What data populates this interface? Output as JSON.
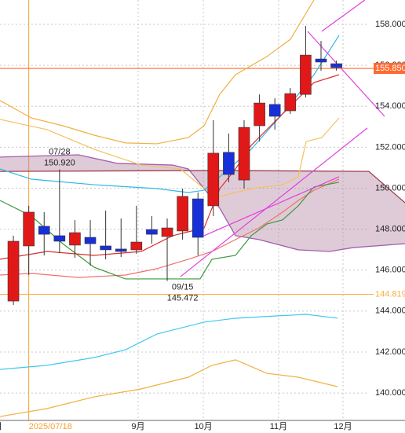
{
  "chart_data": {
    "type": "candlestick",
    "xlim": [
      -0.87,
      25.46
    ],
    "ylim": [
      138.66,
      159.19
    ],
    "yticks": [
      {
        "value": 158,
        "label": "158.000"
      },
      {
        "value": 156,
        "label": "156.000"
      },
      {
        "value": 154,
        "label": "154.000"
      },
      {
        "value": 152,
        "label": "152.000"
      },
      {
        "value": 150,
        "label": "150.000"
      },
      {
        "value": 148,
        "label": "148.000"
      },
      {
        "value": 146,
        "label": "146.000"
      },
      {
        "value": 144,
        "label": "144.000"
      },
      {
        "value": 142,
        "label": "142.000"
      },
      {
        "value": 140,
        "label": "140.000"
      }
    ],
    "xticks": [
      {
        "value": -1,
        "label": "月"
      },
      {
        "value": 1,
        "label": "2025/07/18"
      },
      {
        "value": 8.11,
        "label": "9月"
      },
      {
        "value": 12.35,
        "label": "10月"
      },
      {
        "value": 17.24,
        "label": "11月"
      },
      {
        "value": 21.43,
        "label": "12月"
      }
    ],
    "highlight_xtick": 1,
    "highlight_color": "#f5a030",
    "grid": true,
    "up_color": "#e01818",
    "down_color": "#1830d8",
    "open": [
      144.49,
      147.18,
      148.14,
      147.68,
      147.22,
      147.6,
      147.18,
      147.03,
      146.99,
      147.98,
      147.64,
      147.91,
      149.48,
      149.14,
      151.75,
      150.4,
      153.05,
      154.09,
      153.78,
      154.58,
      156.31,
      156.08
    ],
    "high": [
      147.68,
      149.14,
      148.83,
      150.92,
      148.44,
      148.44,
      148.91,
      148.52,
      149.14,
      148.64,
      148.52,
      149.98,
      149.79,
      153.32,
      152.67,
      153.32,
      154.58,
      154.39,
      154.89,
      157.92,
      157.19,
      156.23
    ],
    "low": [
      144.3,
      145.76,
      146.72,
      146.83,
      146.6,
      146.22,
      146.53,
      146.64,
      146.8,
      147.29,
      145.47,
      147.49,
      146.72,
      148.64,
      150.29,
      149.98,
      152.28,
      152.86,
      153.63,
      154.43,
      155.74,
      155.74
    ],
    "close": [
      147.41,
      148.83,
      147.75,
      147.41,
      147.83,
      147.29,
      146.99,
      146.91,
      147.37,
      147.75,
      148.06,
      149.6,
      147.6,
      151.71,
      150.67,
      152.97,
      154.16,
      153.51,
      154.62,
      156.5,
      156.16,
      155.89
    ],
    "cloud": {
      "fill": "#b07c9a",
      "span_a": {
        "color": "#a060b0",
        "x": [
          -0.87,
          4.23,
          6.78,
          10.35,
          11.37,
          13.42,
          14.44,
          15.97,
          18.52,
          20.56,
          22.09,
          25.46
        ],
        "values": [
          151.52,
          151.63,
          151.21,
          151.13,
          150.94,
          149.02,
          147.68,
          147.49,
          146.99,
          146.91,
          147.1,
          147.29
        ]
      },
      "span_b": {
        "color": "#a04050",
        "x": [
          -0.87,
          11.37,
          14.44,
          23.11,
          25.46
        ],
        "values": [
          150.82,
          150.86,
          150.86,
          150.82,
          149.29
        ]
      }
    },
    "lines": [
      {
        "color": "#f0b040",
        "x": [
          -0.87,
          1.17,
          3.21,
          5.25,
          7.29,
          9.33,
          11.37,
          12.4,
          13.42,
          14.44,
          16.48,
          18.01,
          19.54
        ],
        "values": [
          154.28,
          153.43,
          153.05,
          152.59,
          152.21,
          152.17,
          152.47,
          153.05,
          154.59,
          155.54,
          156.43,
          157.27,
          159.19
        ]
      },
      {
        "color": "#f5c060",
        "x": [
          -0.87,
          2.19,
          5.25,
          8.31,
          10.86,
          12.4,
          13.42,
          15.46,
          17.5,
          18.52,
          19.03,
          20.05,
          21.17
        ],
        "values": [
          153.36,
          152.86,
          151.9,
          151.13,
          150.94,
          149.98,
          149.6,
          149.98,
          150.17,
          150.56,
          152.28,
          152.47,
          153.43
        ]
      },
      {
        "color": "#40c8f0",
        "x": [
          -0.87,
          2.19,
          5.25,
          7.29,
          9.33,
          12.4,
          14.44,
          16.99,
          19.03,
          21.07
        ],
        "values": [
          141.15,
          141.35,
          141.73,
          142.11,
          142.88,
          143.46,
          143.65,
          143.76,
          143.84,
          143.65
        ]
      },
      {
        "color": "#f0b040",
        "x": [
          -0.87,
          2.19,
          5.25,
          8.31,
          11.37,
          12.91,
          14.44,
          16.48,
          18.52,
          21.07
        ],
        "values": [
          138.85,
          139.24,
          139.81,
          140.2,
          140.77,
          141.35,
          141.62,
          140.96,
          140.77,
          140.31
        ]
      },
      {
        "color": "#30b8e8",
        "x": [
          -0.87,
          1.17,
          5.25,
          9.33,
          11.37,
          12.4,
          13.42,
          15.46,
          17.5,
          19.54,
          21.17
        ],
        "values": [
          150.94,
          150.44,
          150.17,
          149.98,
          149.79,
          149.9,
          150.56,
          151.9,
          153.63,
          155.54,
          157.46
        ]
      },
      {
        "color": "#f07070",
        "x": [
          -0.87,
          1.17,
          4.23,
          7.29,
          9.33,
          11.37,
          12.91,
          14.44,
          15.97,
          17.5,
          18.52,
          19.54,
          21.17
        ],
        "values": [
          145.76,
          145.84,
          145.64,
          145.76,
          146.07,
          146.53,
          146.91,
          147.49,
          148.06,
          148.83,
          149.4,
          149.9,
          150.44
        ]
      },
      {
        "color": "#3a9a3a",
        "x": [
          -0.87,
          1.17,
          3.21,
          5.25,
          7.29,
          12.14,
          12.91,
          14.44,
          15.46,
          16.48,
          17.5,
          18.52,
          19.54,
          21.17
        ],
        "values": [
          149.4,
          148.64,
          147.29,
          146.14,
          145.57,
          145.57,
          146.53,
          146.72,
          147.68,
          148.25,
          148.45,
          149.14,
          150.06,
          150.29
        ]
      },
      {
        "color": "#d83030",
        "x": [
          -0.87,
          2.19,
          5.25,
          8.31,
          10.35,
          11.37,
          12.4,
          13.42,
          14.44,
          15.46,
          16.48,
          17.5,
          18.52,
          19.54,
          21.17
        ],
        "values": [
          146.53,
          146.91,
          146.72,
          146.91,
          147.68,
          147.87,
          148.06,
          149.98,
          150.94,
          152.09,
          152.86,
          153.63,
          154.39,
          155.16,
          155.54
        ]
      },
      {
        "color": "#e040e0",
        "x": [
          10.86,
          23.01
        ],
        "values": [
          145.68,
          152.94
        ]
      },
      {
        "color": "#e040e0",
        "x": [
          12.4,
          21.17
        ],
        "values": [
          147.68,
          150.56
        ]
      },
      {
        "color": "#e040e0",
        "x": [
          20.05,
          22.85
        ],
        "values": [
          157.66,
          159.19
        ]
      },
      {
        "color": "#e040e0",
        "x": [
          19.13,
          24.13
        ],
        "values": [
          157.66,
          153.51
        ]
      }
    ],
    "price_lines": [
      {
        "value": 155.85,
        "label": "155.850",
        "color": "#ff6a30",
        "boxed": true
      },
      {
        "value": 144.819,
        "label": "144.819",
        "color": "#f5b040",
        "boxed": false
      }
    ],
    "annotations": [
      {
        "x": 3,
        "date": "07/28",
        "value": 150.92,
        "label": "150.920",
        "position": "above"
      },
      {
        "x": 11,
        "date": "09/15",
        "value": 145.472,
        "label": "145.472",
        "position": "below"
      }
    ]
  }
}
